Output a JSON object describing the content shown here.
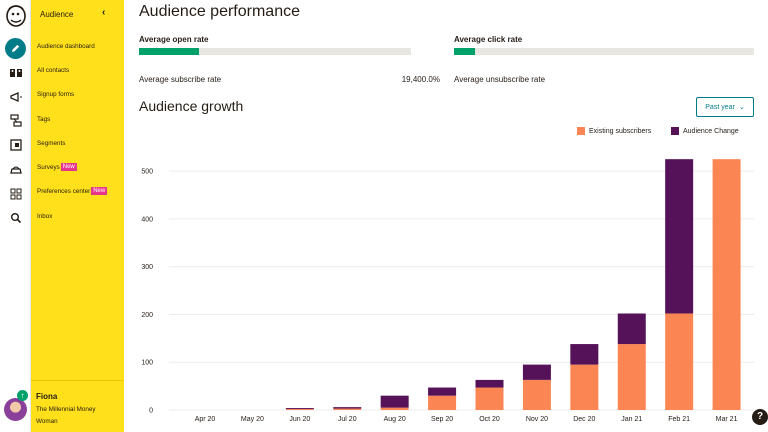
{
  "sidebar": {
    "header": "Audience",
    "items": [
      {
        "label": "Audience dashboard"
      },
      {
        "label": "All contacts"
      },
      {
        "label": "Signup forms"
      },
      {
        "label": "Tags"
      },
      {
        "label": "Segments"
      },
      {
        "label": "Surveys",
        "badge": "New"
      },
      {
        "label": "Preferences center",
        "badge": "New"
      },
      {
        "label": "Inbox"
      }
    ],
    "user": {
      "name": "Fiona",
      "org": "The Millennial Money Woman"
    }
  },
  "performance": {
    "title": "Audience performance",
    "open_rate_label": "Average open rate",
    "open_rate_pct": 0.22,
    "click_rate_label": "Average click rate",
    "click_rate_pct": 0.07,
    "subscribe_label": "Average subscribe rate",
    "subscribe_value": "19,400.0%",
    "unsubscribe_label": "Average unsubscribe rate"
  },
  "growth": {
    "title": "Audience growth",
    "range_select": "Past year"
  },
  "colors": {
    "existing": "#fb8654",
    "change": "#561259",
    "accent": "#007c89",
    "sidebar": "#ffe01b"
  },
  "chart_data": {
    "type": "bar",
    "stacked": true,
    "categories": [
      "Apr 20",
      "May 20",
      "Jun 20",
      "Jul 20",
      "Aug 20",
      "Sep 20",
      "Oct 20",
      "Nov 20",
      "Dec 20",
      "Jan 21",
      "Feb 21",
      "Mar 21"
    ],
    "series": [
      {
        "name": "Existing subscribers",
        "values": [
          0,
          0,
          2,
          3,
          5,
          30,
          47,
          63,
          95,
          138,
          202,
          525
        ]
      },
      {
        "name": "Audience Change",
        "values": [
          0,
          0,
          2,
          3,
          25,
          17,
          16,
          32,
          43,
          64,
          323,
          0
        ]
      }
    ],
    "yticks": [
      0,
      100,
      200,
      300,
      400,
      500
    ],
    "ylim": [
      0,
      540
    ],
    "legend": "top-right"
  }
}
